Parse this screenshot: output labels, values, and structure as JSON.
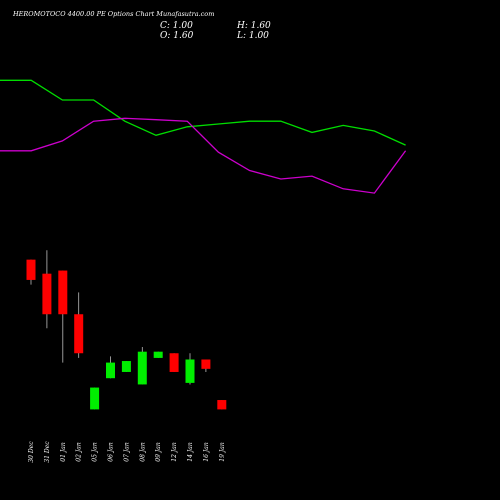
{
  "header": {
    "title": "HEROMOTOCO 4400.00  PE Options  Chart Munafasutra.com",
    "open_label": "O: 1.60",
    "high_label": "H: 1.60",
    "low_label": "L: 1.00",
    "close_label": "C: 1.00"
  },
  "colors": {
    "background": "#000000",
    "up": "#00ee00",
    "down": "#ff0000",
    "line_green": "#00dd00",
    "line_magenta": "#cc00cc",
    "wick": "#bbbbbb"
  },
  "chart_data": [
    {
      "type": "line",
      "grid": false,
      "series": [
        {
          "color": "green",
          "values": [
            13.6,
            13.6,
            12.2,
            12.2,
            10.7,
            9.7,
            10.3,
            10.5,
            10.7,
            10.7,
            9.9,
            10.4,
            10.0,
            9.0
          ]
        },
        {
          "color": "magenta",
          "values": [
            8.6,
            8.6,
            9.3,
            10.7,
            10.9,
            10.8,
            10.7,
            8.5,
            7.2,
            6.6,
            6.8,
            5.9,
            5.6,
            8.6
          ]
        }
      ]
    },
    {
      "type": "candlestick",
      "grid": false,
      "categories": [
        "30 Dec",
        "31 Dec",
        "01 Jan",
        "02 Jan",
        "05 Jan",
        "06 Jan",
        "07 Jan",
        "08 Jan",
        "09 Jan",
        "12 Jan",
        "14 Jan",
        "16 Jan",
        "19 Jan"
      ],
      "candles": [
        {
          "open": 10.6,
          "high": 10.6,
          "low": 9.0,
          "close": 9.3
        },
        {
          "open": 9.7,
          "high": 11.2,
          "low": 6.2,
          "close": 7.1
        },
        {
          "open": 9.9,
          "high": 9.9,
          "low": 4.0,
          "close": 7.1
        },
        {
          "open": 7.1,
          "high": 8.5,
          "low": 4.3,
          "close": 4.6
        },
        {
          "open": 1.0,
          "high": 2.4,
          "low": 1.0,
          "close": 2.4
        },
        {
          "open": 3.0,
          "high": 4.4,
          "low": 3.0,
          "close": 4.0
        },
        {
          "open": 3.4,
          "high": 4.1,
          "low": 3.4,
          "close": 4.1
        },
        {
          "open": 2.6,
          "high": 5.0,
          "low": 2.6,
          "close": 4.7
        },
        {
          "open": 4.3,
          "high": 4.7,
          "low": 4.3,
          "close": 4.7
        },
        {
          "open": 4.6,
          "high": 4.6,
          "low": 3.4,
          "close": 3.4
        },
        {
          "open": 2.7,
          "high": 4.6,
          "low": 2.6,
          "close": 4.2
        },
        {
          "open": 4.2,
          "high": 4.2,
          "low": 3.4,
          "close": 3.6
        },
        {
          "open": 1.6,
          "high": 1.6,
          "low": 1.0,
          "close": 1.0
        }
      ]
    }
  ]
}
